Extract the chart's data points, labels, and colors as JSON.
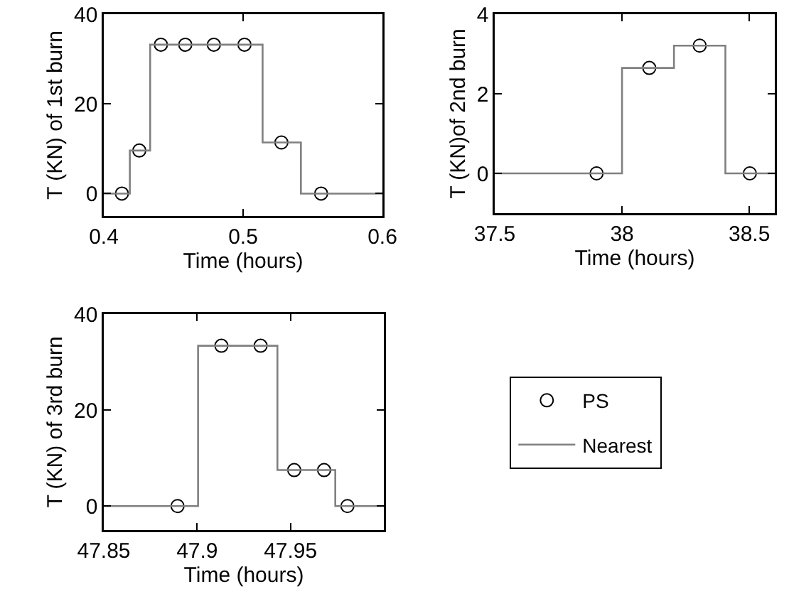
{
  "chart_data": [
    {
      "type": "step",
      "xlabel": "Time (hours)",
      "ylabel": "T (KN) of 1st burn",
      "xlim": [
        0.4,
        0.6
      ],
      "xticks": [
        0.4,
        0.5,
        0.6
      ],
      "ylim": [
        -5,
        40
      ],
      "yticks": [
        0,
        20,
        40
      ],
      "legend": false,
      "series": [
        {
          "type": "scatter",
          "marker": "circle",
          "color": "#000000",
          "x": [
            0.413,
            0.4255,
            0.441,
            0.4585,
            0.479,
            0.501,
            0.5275,
            0.556
          ],
          "values": [
            0,
            9.6,
            33.2,
            33.2,
            33.2,
            33.2,
            11.4,
            0
          ]
        },
        {
          "type": "step",
          "color": "#808080",
          "x": [
            0.4,
            0.4187,
            0.4333,
            0.514,
            0.5415,
            0.6
          ],
          "values": [
            0,
            9.6,
            33.2,
            11.4,
            0,
            0
          ]
        }
      ]
    },
    {
      "type": "step",
      "xlabel": "Time (hours)",
      "ylabel": "T (KN)of 2nd burn",
      "xlim": [
        37.5,
        38.6
      ],
      "xticks": [
        37.5,
        38,
        38.5
      ],
      "ylim": [
        -1,
        4
      ],
      "yticks": [
        0,
        2,
        4
      ],
      "legend": false,
      "series": [
        {
          "type": "scatter",
          "marker": "circle",
          "color": "#000000",
          "x": [
            37.9,
            38.107,
            38.305,
            38.502
          ],
          "values": [
            0,
            2.65,
            3.21,
            0
          ]
        },
        {
          "type": "step",
          "color": "#808080",
          "x": [
            37.5,
            38.0,
            38.204,
            38.406,
            38.6
          ],
          "values": [
            0,
            2.65,
            3.21,
            0,
            0
          ]
        }
      ]
    },
    {
      "type": "step",
      "xlabel": "Time (hours)",
      "ylabel": "T (KN) of 3rd burn",
      "xlim": [
        47.85,
        48.0
      ],
      "xticks": [
        47.85,
        47.9,
        47.95
      ],
      "ylim": [
        -5,
        40
      ],
      "yticks": [
        0,
        20,
        40
      ],
      "legend": "right",
      "series": [
        {
          "name": "PS",
          "type": "scatter",
          "marker": "circle",
          "color": "#000000",
          "x": [
            47.8895,
            47.913,
            47.934,
            47.952,
            47.968,
            47.9805
          ],
          "values": [
            0,
            33.4,
            33.4,
            7.5,
            7.5,
            0
          ]
        },
        {
          "name": "Nearest",
          "type": "step",
          "color": "#808080",
          "x": [
            47.85,
            47.9005,
            47.943,
            47.974,
            48.0
          ],
          "values": [
            0,
            33.4,
            7.5,
            0,
            0
          ]
        }
      ]
    }
  ]
}
